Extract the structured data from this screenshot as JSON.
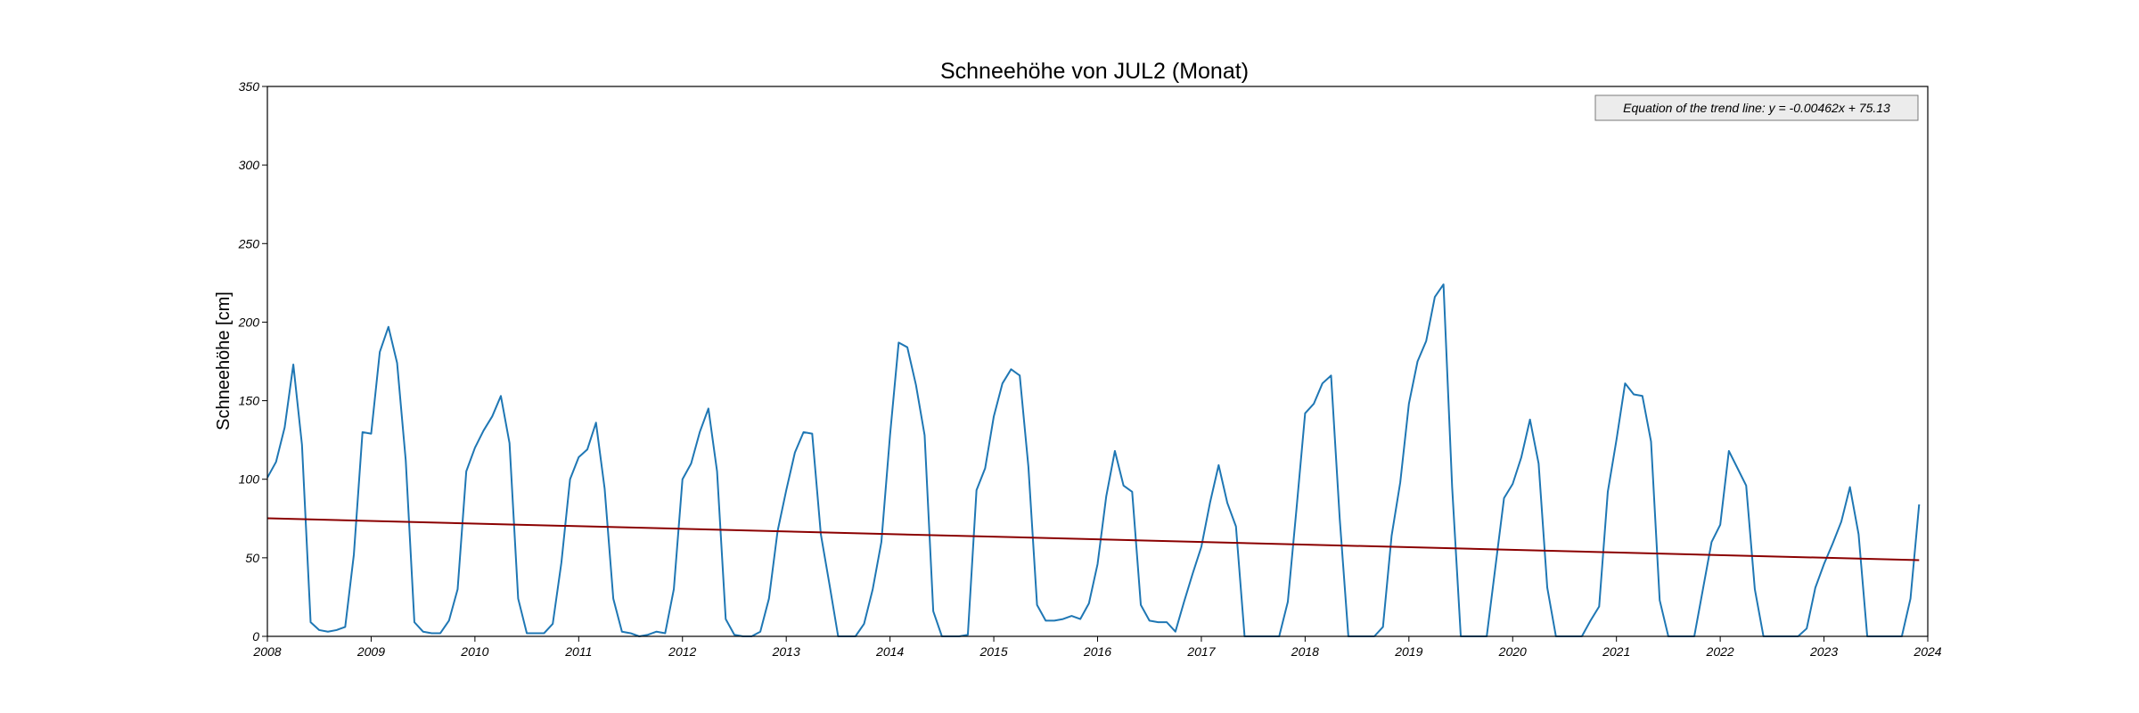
{
  "chart_data": {
    "type": "line",
    "title": "Schneehöhe von JUL2 (Monat)",
    "xlabel": "",
    "ylabel": "Schneehöhe [cm]",
    "xlim": [
      "2008-01",
      "2024-01"
    ],
    "ylim": [
      0,
      350
    ],
    "x_ticks": [
      "2008",
      "2009",
      "2010",
      "2011",
      "2012",
      "2013",
      "2014",
      "2015",
      "2016",
      "2017",
      "2018",
      "2019",
      "2020",
      "2021",
      "2022",
      "2023",
      "2024"
    ],
    "y_ticks": [
      0,
      50,
      100,
      150,
      200,
      250,
      300,
      350
    ],
    "grid": false,
    "annotation": "Equation of the trend line: y = -0.00462x + 75.13",
    "series": [
      {
        "kind": "data",
        "color": "#1f77b4",
        "points": [
          [
            "2008-01",
            101
          ],
          [
            "2008-02",
            111
          ],
          [
            "2008-03",
            133
          ],
          [
            "2008-04",
            173
          ],
          [
            "2008-05",
            122
          ],
          [
            "2008-06",
            9
          ],
          [
            "2008-07",
            4
          ],
          [
            "2008-08",
            3
          ],
          [
            "2008-09",
            4
          ],
          [
            "2008-10",
            6
          ],
          [
            "2008-11",
            52
          ],
          [
            "2008-12",
            130
          ],
          [
            "2009-01",
            129
          ],
          [
            "2009-02",
            181
          ],
          [
            "2009-03",
            197
          ],
          [
            "2009-04",
            174
          ],
          [
            "2009-05",
            112
          ],
          [
            "2009-06",
            9
          ],
          [
            "2009-07",
            3
          ],
          [
            "2009-08",
            2
          ],
          [
            "2009-09",
            2
          ],
          [
            "2009-10",
            10
          ],
          [
            "2009-11",
            30
          ],
          [
            "2009-12",
            105
          ],
          [
            "2010-01",
            120
          ],
          [
            "2010-02",
            131
          ],
          [
            "2010-03",
            140
          ],
          [
            "2010-04",
            153
          ],
          [
            "2010-05",
            123
          ],
          [
            "2010-06",
            24
          ],
          [
            "2010-07",
            2
          ],
          [
            "2010-08",
            2
          ],
          [
            "2010-09",
            2
          ],
          [
            "2010-10",
            8
          ],
          [
            "2010-11",
            47
          ],
          [
            "2010-12",
            100
          ],
          [
            "2011-01",
            114
          ],
          [
            "2011-02",
            119
          ],
          [
            "2011-03",
            136
          ],
          [
            "2011-04",
            94
          ],
          [
            "2011-05",
            24
          ],
          [
            "2011-06",
            3
          ],
          [
            "2011-07",
            2
          ],
          [
            "2011-08",
            0
          ],
          [
            "2011-09",
            1
          ],
          [
            "2011-10",
            3
          ],
          [
            "2011-11",
            2
          ],
          [
            "2011-12",
            30
          ],
          [
            "2012-01",
            100
          ],
          [
            "2012-02",
            110
          ],
          [
            "2012-03",
            130
          ],
          [
            "2012-04",
            145
          ],
          [
            "2012-05",
            105
          ],
          [
            "2012-06",
            11
          ],
          [
            "2012-07",
            1
          ],
          [
            "2012-08",
            0
          ],
          [
            "2012-09",
            0
          ],
          [
            "2012-10",
            3
          ],
          [
            "2012-11",
            24
          ],
          [
            "2012-12",
            67
          ],
          [
            "2013-01",
            93
          ],
          [
            "2013-02",
            117
          ],
          [
            "2013-03",
            130
          ],
          [
            "2013-04",
            129
          ],
          [
            "2013-05",
            65
          ],
          [
            "2013-06",
            33
          ],
          [
            "2013-07",
            0
          ],
          [
            "2013-08",
            0
          ],
          [
            "2013-09",
            0
          ],
          [
            "2013-10",
            8
          ],
          [
            "2013-11",
            30
          ],
          [
            "2013-12",
            60
          ],
          [
            "2014-01",
            128
          ],
          [
            "2014-02",
            187
          ],
          [
            "2014-03",
            184
          ],
          [
            "2014-04",
            160
          ],
          [
            "2014-05",
            128
          ],
          [
            "2014-06",
            16
          ],
          [
            "2014-07",
            0
          ],
          [
            "2014-08",
            0
          ],
          [
            "2014-09",
            0
          ],
          [
            "2014-10",
            1
          ],
          [
            "2014-11",
            93
          ],
          [
            "2014-12",
            107
          ],
          [
            "2015-01",
            140
          ],
          [
            "2015-02",
            161
          ],
          [
            "2015-03",
            170
          ],
          [
            "2015-04",
            166
          ],
          [
            "2015-05",
            108
          ],
          [
            "2015-06",
            20
          ],
          [
            "2015-07",
            10
          ],
          [
            "2015-08",
            10
          ],
          [
            "2015-09",
            11
          ],
          [
            "2015-10",
            13
          ],
          [
            "2015-11",
            11
          ],
          [
            "2015-12",
            21
          ],
          [
            "2016-01",
            46
          ],
          [
            "2016-02",
            89
          ],
          [
            "2016-03",
            118
          ],
          [
            "2016-04",
            96
          ],
          [
            "2016-05",
            92
          ],
          [
            "2016-06",
            20
          ],
          [
            "2016-07",
            10
          ],
          [
            "2016-08",
            9
          ],
          [
            "2016-09",
            9
          ],
          [
            "2016-10",
            3
          ],
          [
            "2016-11",
            22
          ],
          [
            "2016-12",
            40
          ],
          [
            "2017-01",
            57
          ],
          [
            "2017-02",
            85
          ],
          [
            "2017-03",
            109
          ],
          [
            "2017-04",
            85
          ],
          [
            "2017-05",
            70
          ],
          [
            "2017-06",
            0
          ],
          [
            "2017-07",
            0
          ],
          [
            "2017-08",
            0
          ],
          [
            "2017-09",
            0
          ],
          [
            "2017-10",
            0
          ],
          [
            "2017-11",
            22
          ],
          [
            "2017-12",
            81
          ],
          [
            "2018-01",
            142
          ],
          [
            "2018-02",
            148
          ],
          [
            "2018-03",
            161
          ],
          [
            "2018-04",
            166
          ],
          [
            "2018-05",
            75
          ],
          [
            "2018-06",
            0
          ],
          [
            "2018-07",
            0
          ],
          [
            "2018-08",
            0
          ],
          [
            "2018-09",
            0
          ],
          [
            "2018-10",
            6
          ],
          [
            "2018-11",
            64
          ],
          [
            "2018-12",
            98
          ],
          [
            "2019-01",
            148
          ],
          [
            "2019-02",
            175
          ],
          [
            "2019-03",
            188
          ],
          [
            "2019-04",
            216
          ],
          [
            "2019-05",
            224
          ],
          [
            "2019-06",
            95
          ],
          [
            "2019-07",
            0
          ],
          [
            "2019-08",
            0
          ],
          [
            "2019-09",
            0
          ],
          [
            "2019-10",
            0
          ],
          [
            "2019-11",
            44
          ],
          [
            "2019-12",
            88
          ],
          [
            "2020-01",
            97
          ],
          [
            "2020-02",
            114
          ],
          [
            "2020-03",
            138
          ],
          [
            "2020-04",
            110
          ],
          [
            "2020-05",
            31
          ],
          [
            "2020-06",
            0
          ],
          [
            "2020-07",
            0
          ],
          [
            "2020-08",
            0
          ],
          [
            "2020-09",
            0
          ],
          [
            "2020-10",
            10
          ],
          [
            "2020-11",
            19
          ],
          [
            "2020-12",
            92
          ],
          [
            "2021-01",
            125
          ],
          [
            "2021-02",
            161
          ],
          [
            "2021-03",
            154
          ],
          [
            "2021-04",
            153
          ],
          [
            "2021-05",
            124
          ],
          [
            "2021-06",
            23
          ],
          [
            "2021-07",
            0
          ],
          [
            "2021-08",
            0
          ],
          [
            "2021-09",
            0
          ],
          [
            "2021-10",
            0
          ],
          [
            "2021-11",
            30
          ],
          [
            "2021-12",
            60
          ],
          [
            "2022-01",
            71
          ],
          [
            "2022-02",
            118
          ],
          [
            "2022-03",
            107
          ],
          [
            "2022-04",
            96
          ],
          [
            "2022-05",
            30
          ],
          [
            "2022-06",
            0
          ],
          [
            "2022-07",
            0
          ],
          [
            "2022-08",
            0
          ],
          [
            "2022-09",
            0
          ],
          [
            "2022-10",
            0
          ],
          [
            "2022-11",
            5
          ],
          [
            "2022-12",
            31
          ],
          [
            "2023-01",
            46
          ],
          [
            "2023-02",
            59
          ],
          [
            "2023-03",
            73
          ],
          [
            "2023-04",
            95
          ],
          [
            "2023-05",
            65
          ],
          [
            "2023-06",
            0
          ],
          [
            "2023-07",
            0
          ],
          [
            "2023-08",
            0
          ],
          [
            "2023-09",
            0
          ],
          [
            "2023-10",
            0
          ],
          [
            "2023-11",
            24
          ],
          [
            "2023-12",
            84
          ]
        ]
      },
      {
        "kind": "trend",
        "color": "#8b0000",
        "points": [
          [
            "2008-01",
            75.13
          ],
          [
            "2023-12",
            48.5
          ]
        ]
      }
    ]
  }
}
